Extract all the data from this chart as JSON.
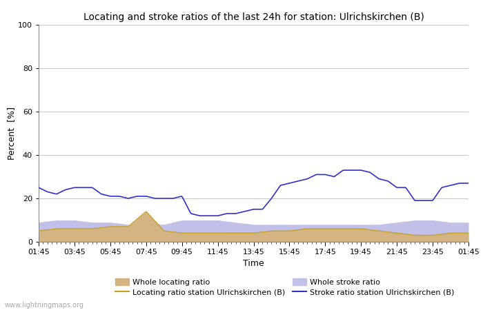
{
  "title": "Locating and stroke ratios of the last 24h for station: Ulrichskirchen (B)",
  "xlabel": "Time",
  "ylabel": "Percent  [%]",
  "ylim": [
    0,
    100
  ],
  "yticks": [
    0,
    20,
    40,
    60,
    80,
    100
  ],
  "xtick_labels": [
    "01:45",
    "03:45",
    "05:45",
    "07:45",
    "09:45",
    "11:45",
    "13:45",
    "15:45",
    "17:45",
    "19:45",
    "21:45",
    "23:45",
    "01:45"
  ],
  "watermark": "www.lightningmaps.org",
  "whole_locating_color": "#d4b483",
  "whole_stroke_color": "#c0c0e8",
  "locating_line_color": "#c8a020",
  "stroke_line_color": "#3030cc",
  "wlr_x": [
    0,
    1,
    2,
    3,
    4,
    5,
    6,
    7,
    8,
    9,
    10,
    11,
    12,
    13,
    14,
    15,
    16,
    17,
    18,
    19,
    20,
    21,
    22,
    23,
    24
  ],
  "wlr_y": [
    5,
    6,
    6,
    6,
    7,
    7,
    14,
    5,
    4,
    4,
    4,
    4,
    4,
    5,
    5,
    6,
    6,
    6,
    6,
    5,
    4,
    3,
    3,
    4,
    4
  ],
  "wsr_x": [
    0,
    1,
    2,
    3,
    4,
    5,
    6,
    7,
    8,
    9,
    10,
    11,
    12,
    13,
    14,
    15,
    16,
    17,
    18,
    19,
    20,
    21,
    22,
    23,
    24
  ],
  "wsr_y": [
    9,
    10,
    10,
    9,
    9,
    8,
    9,
    8,
    10,
    10,
    10,
    9,
    8,
    8,
    8,
    8,
    8,
    8,
    8,
    8,
    9,
    10,
    10,
    9,
    9
  ],
  "lrs_x": [
    0,
    1,
    2,
    3,
    4,
    5,
    6,
    7,
    8,
    9,
    10,
    11,
    12,
    13,
    14,
    15,
    16,
    17,
    18,
    19,
    20,
    21,
    22,
    23,
    24
  ],
  "lrs_y": [
    5,
    6,
    6,
    6,
    7,
    7,
    14,
    5,
    4,
    4,
    4,
    4,
    4,
    5,
    5,
    6,
    6,
    6,
    6,
    5,
    4,
    3,
    3,
    4,
    4
  ],
  "srs_x": [
    0,
    0.5,
    1,
    1.5,
    2,
    2.5,
    3,
    3.5,
    4,
    4.5,
    5,
    5.5,
    6,
    6.5,
    7,
    7.5,
    8,
    8.5,
    9,
    9.5,
    10,
    10.5,
    11,
    11.5,
    12,
    12.5,
    13,
    13.5,
    14,
    14.5,
    15,
    15.5,
    16,
    16.5,
    17,
    17.5,
    18,
    18.5,
    19,
    19.5,
    20,
    20.5,
    21,
    21.5,
    22,
    22.5,
    23,
    23.5,
    24
  ],
  "srs_y": [
    25,
    23,
    22,
    24,
    25,
    25,
    25,
    22,
    21,
    21,
    20,
    21,
    21,
    20,
    20,
    20,
    21,
    13,
    12,
    12,
    12,
    13,
    13,
    14,
    15,
    15,
    20,
    26,
    27,
    28,
    29,
    31,
    31,
    30,
    33,
    33,
    33,
    32,
    29,
    28,
    25,
    25,
    19,
    19,
    19,
    25,
    26,
    27,
    27
  ]
}
